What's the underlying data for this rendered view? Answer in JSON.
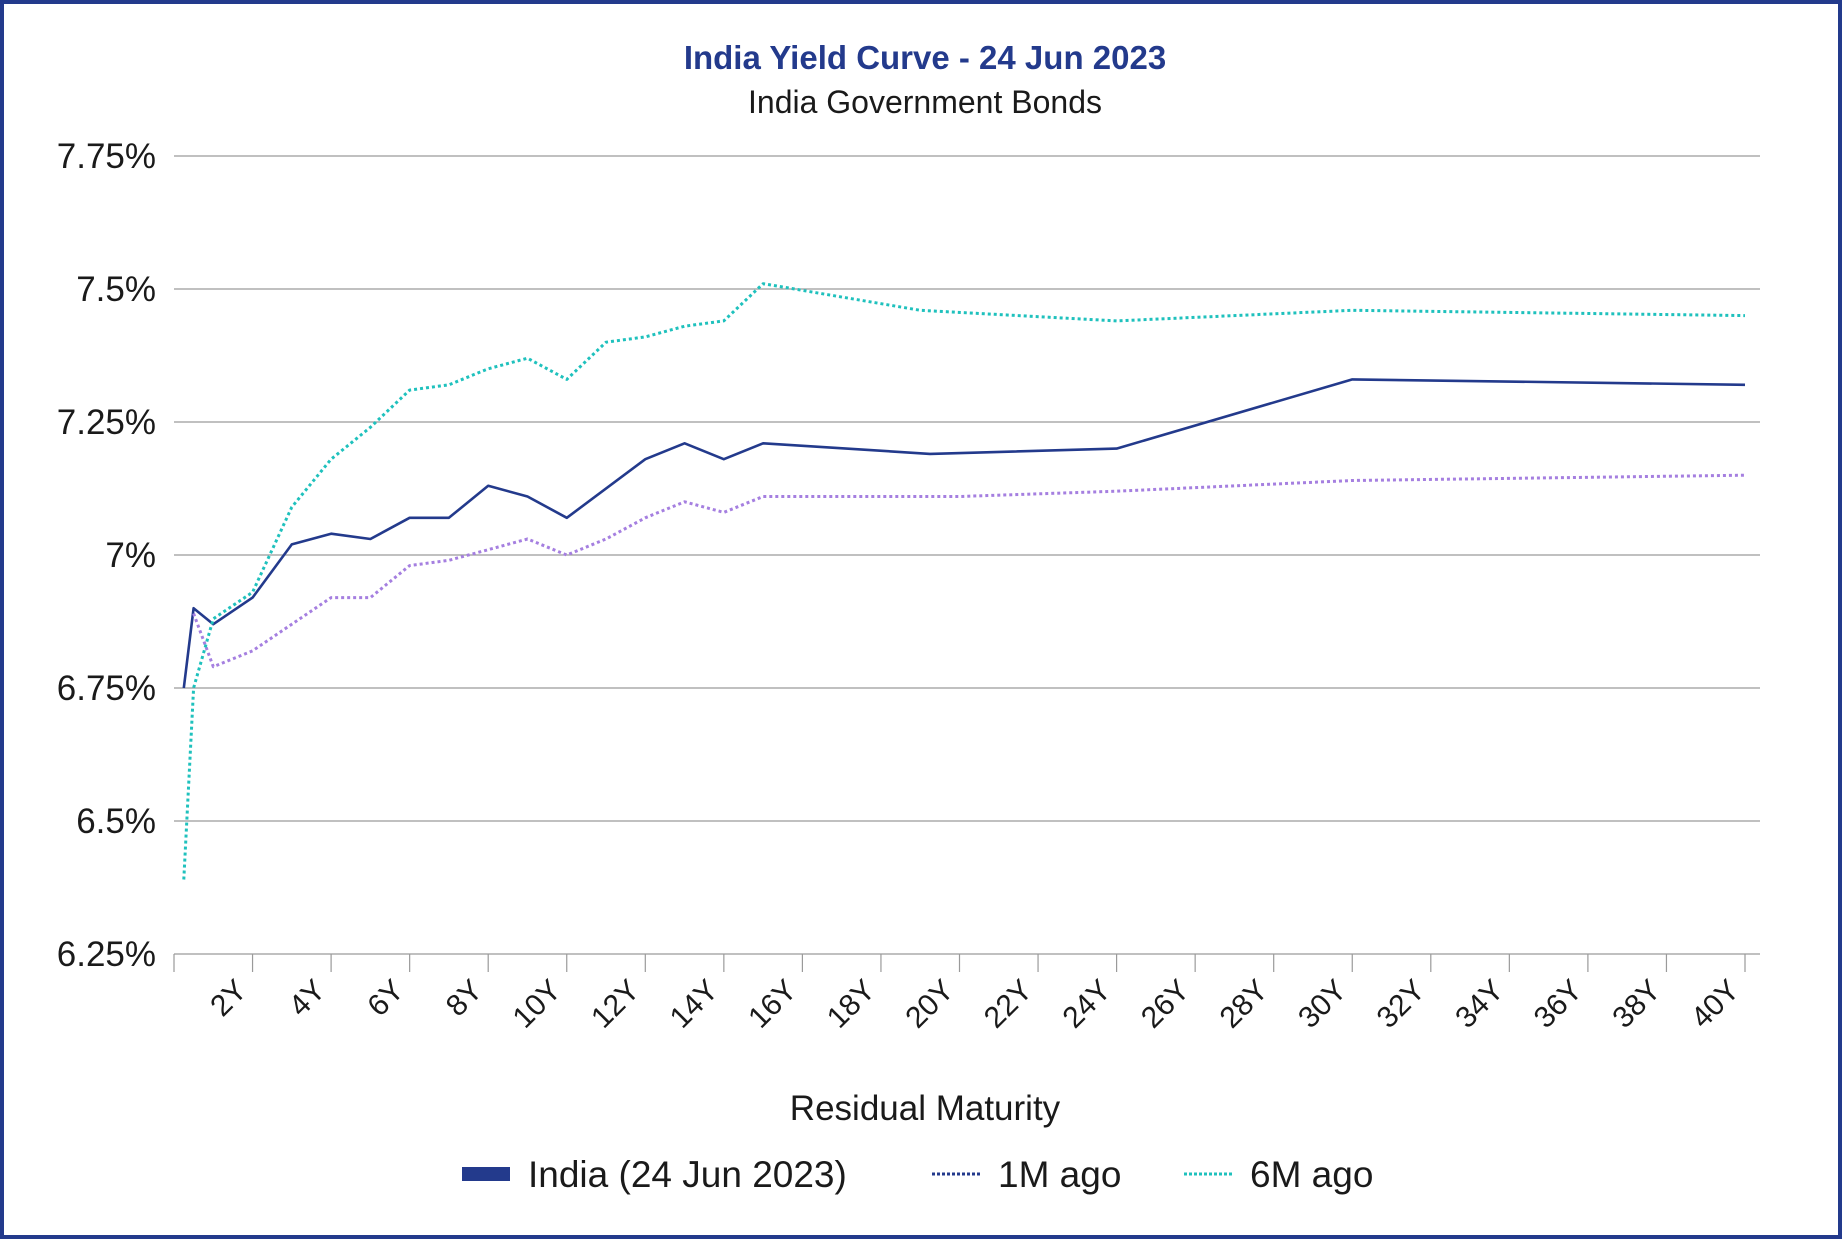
{
  "chart_data": {
    "type": "line",
    "title": "India Yield Curve - 24 Jun 2023",
    "subtitle": "India Government Bonds",
    "xlabel": "Residual Maturity",
    "ylabel": "",
    "xlim": [
      0,
      40
    ],
    "ylim": [
      6.25,
      7.75
    ],
    "y_ticks": [
      6.25,
      6.5,
      6.75,
      7,
      7.25,
      7.5,
      7.75
    ],
    "y_tick_labels": [
      "6.25%",
      "6.5%",
      "6.75%",
      "7%",
      "7.25%",
      "7.5%",
      "7.75%"
    ],
    "x_ticks": [
      2,
      4,
      6,
      8,
      10,
      12,
      14,
      16,
      18,
      20,
      22,
      24,
      26,
      28,
      30,
      32,
      34,
      36,
      38,
      40
    ],
    "x_tick_labels": [
      "2Y",
      "4Y",
      "6Y",
      "8Y",
      "10Y",
      "12Y",
      "14Y",
      "16Y",
      "18Y",
      "20Y",
      "22Y",
      "24Y",
      "26Y",
      "28Y",
      "30Y",
      "32Y",
      "34Y",
      "36Y",
      "38Y",
      "40Y"
    ],
    "grid": true,
    "legend_position": "bottom",
    "series": [
      {
        "name": "India (24 Jun 2023)",
        "color": "#233a8c",
        "style": "solid",
        "legend_symbol": "bar",
        "points": [
          [
            0.25,
            6.75
          ],
          [
            0.5,
            6.9
          ],
          [
            1,
            6.87
          ],
          [
            2,
            6.92
          ],
          [
            3,
            7.02
          ],
          [
            4,
            7.04
          ],
          [
            5,
            7.03
          ],
          [
            6,
            7.07
          ],
          [
            7,
            7.07
          ],
          [
            8,
            7.13
          ],
          [
            9,
            7.11
          ],
          [
            10,
            7.07
          ],
          [
            12,
            7.18
          ],
          [
            13,
            7.21
          ],
          [
            14,
            7.18
          ],
          [
            15,
            7.21
          ],
          [
            19.25,
            7.19
          ],
          [
            24,
            7.2
          ],
          [
            30,
            7.33
          ],
          [
            40,
            7.32
          ]
        ]
      },
      {
        "name": "1M ago",
        "color": "#a57fe0",
        "legend_color": "#233a8c",
        "style": "dotted",
        "legend_symbol": "dotted-line",
        "points": [
          [
            0.5,
            6.89
          ],
          [
            1,
            6.79
          ],
          [
            2,
            6.82
          ],
          [
            3,
            6.87
          ],
          [
            4,
            6.92
          ],
          [
            5,
            6.92
          ],
          [
            6,
            6.98
          ],
          [
            7,
            6.99
          ],
          [
            8,
            7.01
          ],
          [
            9,
            7.03
          ],
          [
            10,
            7.0
          ],
          [
            11,
            7.03
          ],
          [
            12,
            7.07
          ],
          [
            13,
            7.1
          ],
          [
            14,
            7.08
          ],
          [
            15,
            7.11
          ],
          [
            20,
            7.11
          ],
          [
            24,
            7.12
          ],
          [
            30,
            7.14
          ],
          [
            40,
            7.15
          ]
        ]
      },
      {
        "name": "6M ago",
        "color": "#1fc1bd",
        "style": "dotted",
        "legend_symbol": "dotted-line",
        "points": [
          [
            0.25,
            6.39
          ],
          [
            0.5,
            6.75
          ],
          [
            1,
            6.88
          ],
          [
            2,
            6.93
          ],
          [
            3,
            7.09
          ],
          [
            4,
            7.18
          ],
          [
            5,
            7.24
          ],
          [
            6,
            7.31
          ],
          [
            7,
            7.32
          ],
          [
            8,
            7.35
          ],
          [
            9,
            7.37
          ],
          [
            10,
            7.33
          ],
          [
            11,
            7.4
          ],
          [
            12,
            7.41
          ],
          [
            13,
            7.43
          ],
          [
            14,
            7.44
          ],
          [
            15,
            7.51
          ],
          [
            19,
            7.46
          ],
          [
            24,
            7.44
          ],
          [
            30,
            7.46
          ],
          [
            40,
            7.45
          ]
        ]
      }
    ]
  }
}
